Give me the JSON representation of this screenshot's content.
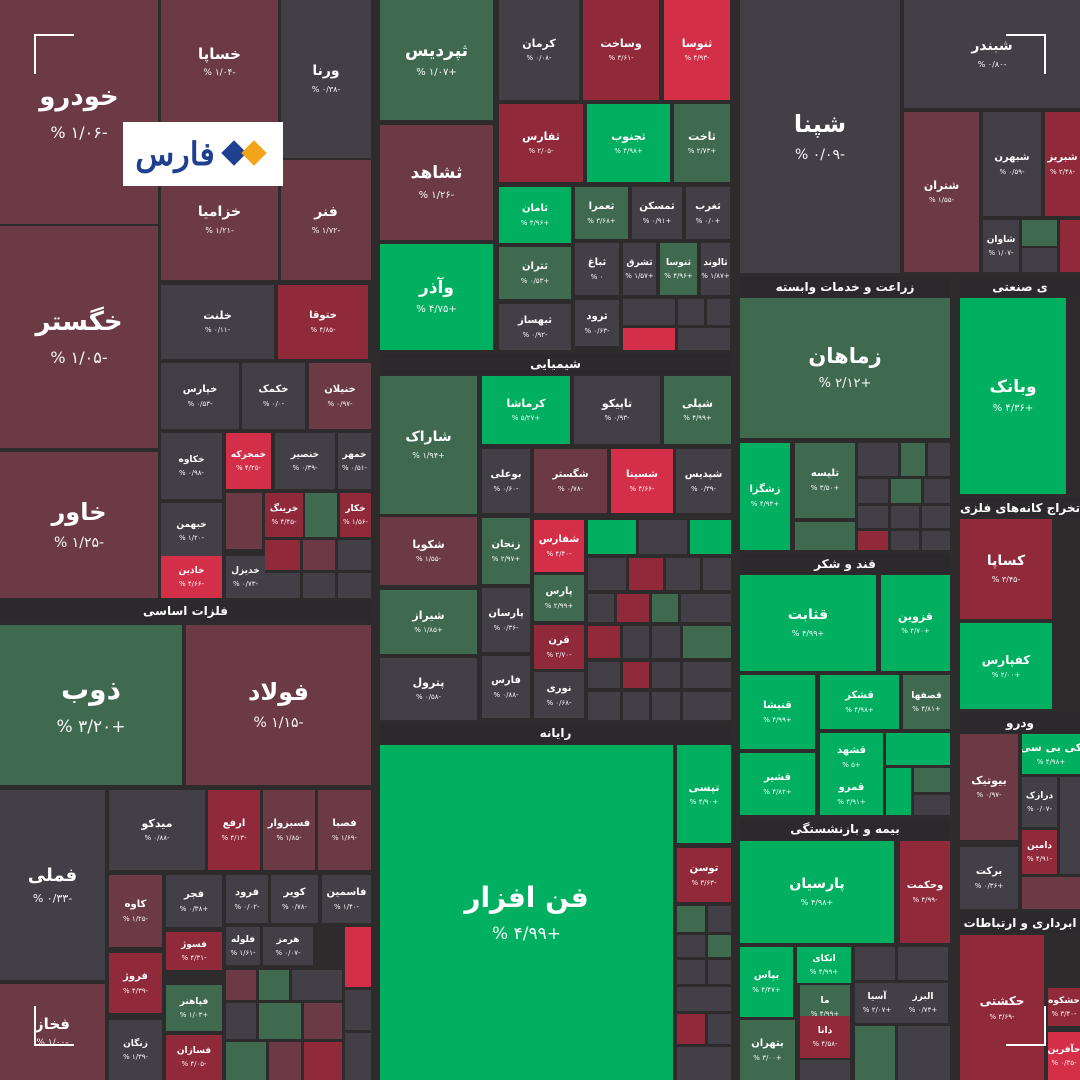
{
  "colors": {
    "strong_up": "#00b060",
    "up": "#3f6a50",
    "neutral": "#433f46",
    "down": "#6b3a45",
    "strong_down": "#d42f49",
    "mild_down": "#90293a",
    "background": "#2e2b2d"
  },
  "logo": {
    "text": "فارس"
  },
  "chart_data": {
    "type": "treemap",
    "title": "",
    "sections": [
      {
        "name": "فلزات اساسی"
      },
      {
        "name": "شیمیایی"
      },
      {
        "name": "رایانه"
      },
      {
        "name": "زراعت و خدمات وابسته"
      },
      {
        "name": "قند و شکر"
      },
      {
        "name": "بیمه و بازنشستگی"
      },
      {
        "name": "ی صنعتی"
      },
      {
        "name": "تخراج کانه‌های فلزی"
      },
      {
        "name": "ودرو"
      },
      {
        "name": "ابرداری و ارتباطات"
      }
    ],
    "tiles": [
      {
        "name": "خودرو",
        "change": "-۱/۰۶ %"
      },
      {
        "name": "خساپا",
        "change": "-۱/۰۴ %"
      },
      {
        "name": "ورنا",
        "change": "-۰/۳۸ %"
      },
      {
        "name": "خزامیا",
        "change": "-۱/۲۱ %"
      },
      {
        "name": "فنر",
        "change": "-۱/۷۲ %"
      },
      {
        "name": "خگستر",
        "change": "-۱/۰۵ %"
      },
      {
        "name": "خلنت",
        "change": "-۰/۱۱ %"
      },
      {
        "name": "ختوقا",
        "change": "-۴/۸۵ %"
      },
      {
        "name": "خپارس",
        "change": "-۰/۵۳ %"
      },
      {
        "name": "خکمک",
        "change": "-۰/۰ %"
      },
      {
        "name": "خنیلان",
        "change": "-۰/۹۷ %"
      },
      {
        "name": "خکاوه",
        "change": "-۰/۹۸ %"
      },
      {
        "name": "خمحرکه",
        "change": "-۴/۲۵ %"
      },
      {
        "name": "خنصیر",
        "change": "-۰/۳۹ %"
      },
      {
        "name": "خمهر",
        "change": "-۰/۵۱ %"
      },
      {
        "name": "خاور",
        "change": "-۱/۲۵ %"
      },
      {
        "name": "خبهمن",
        "change": "-۱/۲۰ %"
      },
      {
        "name": "خرینگ",
        "change": "-۴/۴۵ %"
      },
      {
        "name": "خکار",
        "change": "-۱/۵۶ %"
      },
      {
        "name": "خاذین",
        "change": "-۴/۶۶ %"
      },
      {
        "name": "خدیزل",
        "change": "-۰/۷۳ %"
      },
      {
        "name": "ذوب",
        "change": "+۳/۲۰ %"
      },
      {
        "name": "فولاد",
        "change": "-۱/۱۵ %"
      },
      {
        "name": "فملی",
        "change": "-۰/۳۳ %"
      },
      {
        "name": "میدکو",
        "change": "-۰/۸۸ %"
      },
      {
        "name": "ارفع",
        "change": "-۴/۱۳ %"
      },
      {
        "name": "فسبزوار",
        "change": "-۱/۸۵ %"
      },
      {
        "name": "فصبا",
        "change": "-۱/۶۹ %"
      },
      {
        "name": "کاوه",
        "change": "-۱/۲۵ %"
      },
      {
        "name": "فجر",
        "change": "+۰/۳۸ %"
      },
      {
        "name": "فرود",
        "change": "-۰/۰۲ %"
      },
      {
        "name": "کویر",
        "change": "-۰/۷۸ %"
      },
      {
        "name": "فاسمین",
        "change": "-۱/۴۰ %"
      },
      {
        "name": "فسوژ",
        "change": "-۴/۳۱ %"
      },
      {
        "name": "فلوله",
        "change": "-۱/۶۱ %"
      },
      {
        "name": "هرمز",
        "change": "-۰/۰۷ %"
      },
      {
        "name": "فروژ",
        "change": "-۴/۳۹ %"
      },
      {
        "name": "فپاهنر",
        "change": "+۱/۰۳ %"
      },
      {
        "name": "فخاز",
        "change": "-۱/۰۰ %"
      },
      {
        "name": "زنگان",
        "change": "-۱/۳۹ %"
      },
      {
        "name": "فسازان",
        "change": "-۴/۰۵ %"
      },
      {
        "name": "ثپردیس",
        "change": "+۱/۰۷ %"
      },
      {
        "name": "کرمان",
        "change": "-۰/۰۸ %"
      },
      {
        "name": "وساخت",
        "change": "-۳/۶۱ %"
      },
      {
        "name": "ثنوسا",
        "change": "-۴/۹۳ %"
      },
      {
        "name": "ثشاهد",
        "change": "-۱/۲۶ %"
      },
      {
        "name": "ثفارس",
        "change": "-۲/۰۵ %"
      },
      {
        "name": "ثجنوب",
        "change": "+۴/۹۸ %"
      },
      {
        "name": "ثاخت",
        "change": "+۲/۷۳ %"
      },
      {
        "name": "ثامان",
        "change": "+۴/۹۶ %"
      },
      {
        "name": "ثعمرا",
        "change": "+۳/۶۸ %"
      },
      {
        "name": "ثمسکن",
        "change": "+۰/۹۱ %"
      },
      {
        "name": "ثغرب",
        "change": "+۰/۰ %"
      },
      {
        "name": "وآذر",
        "change": "+۴/۷۵ %"
      },
      {
        "name": "ثتران",
        "change": "+۰/۵۳ %"
      },
      {
        "name": "ثباغ",
        "change": "۰ %"
      },
      {
        "name": "ثشرق",
        "change": "+۱/۵۷ %"
      },
      {
        "name": "ثنوسا",
        "change": "+۴/۹۶ %"
      },
      {
        "name": "ثالوند",
        "change": "+۱/۸۷ %"
      },
      {
        "name": "ثبهساز",
        "change": "-۰/۹۲ %"
      },
      {
        "name": "ثرود",
        "change": "-۰/۶۳ %"
      },
      {
        "name": "کرماشا",
        "change": "+۵/۲۷ %"
      },
      {
        "name": "تاپیکو",
        "change": "-۰/۹۳ %"
      },
      {
        "name": "شپلی",
        "change": "+۴/۹۹ %"
      },
      {
        "name": "شاراک",
        "change": "+۱/۹۴ %"
      },
      {
        "name": "بوعلی",
        "change": "-۰/۶۰ %"
      },
      {
        "name": "شگستر",
        "change": "-۰/۷۸ %"
      },
      {
        "name": "شسینا",
        "change": "-۴/۶۶ %"
      },
      {
        "name": "شپدیس",
        "change": "-۰/۳۹ %"
      },
      {
        "name": "شکویا",
        "change": "-۱/۵۵ %"
      },
      {
        "name": "زنجان",
        "change": "+۲/۹۷ %"
      },
      {
        "name": "شفارس",
        "change": "-۴/۴۰ %"
      },
      {
        "name": "پارس",
        "change": "+۲/۹۹ %"
      },
      {
        "name": "شیراز",
        "change": "+۱/۸۵ %"
      },
      {
        "name": "پارسان",
        "change": "-۰/۳۶ %"
      },
      {
        "name": "قرن",
        "change": "-۲/۷۰ %"
      },
      {
        "name": "پترول",
        "change": "-۰/۵۸ %"
      },
      {
        "name": "فارس",
        "change": "-۰/۸۸ %"
      },
      {
        "name": "نوری",
        "change": "-۰/۶۸ %"
      },
      {
        "name": "فن افزار",
        "change": "+۴/۹۹ %"
      },
      {
        "name": "تپسی",
        "change": "+۴/۹۰ %"
      },
      {
        "name": "توسن",
        "change": "-۳/۶۳ %"
      },
      {
        "name": "شپنا",
        "change": "-۰/۰۹ %"
      },
      {
        "name": "شبندر",
        "change": "-۰/۸۰ %"
      },
      {
        "name": "شتران",
        "change": "-۱/۵۵ %"
      },
      {
        "name": "شبهرن",
        "change": "-۰/۵۹ %"
      },
      {
        "name": "شبریز",
        "change": "-۲/۴۸ %"
      },
      {
        "name": "شاوان",
        "change": "-۱/۰۷ %"
      },
      {
        "name": "زماهان",
        "change": "+۲/۱۲ %"
      },
      {
        "name": "وبانک",
        "change": "+۴/۳۶ %"
      },
      {
        "name": "زشگزا",
        "change": "+۴/۹۴ %"
      },
      {
        "name": "تلیسه",
        "change": "+۳/۵۰ %"
      },
      {
        "name": "قثابت",
        "change": "+۴/۹۹ %"
      },
      {
        "name": "قزوین",
        "change": "+۴/۷۰ %"
      },
      {
        "name": "قنیشا",
        "change": "+۴/۹۹ %"
      },
      {
        "name": "قشکر",
        "change": "+۴/۹۸ %"
      },
      {
        "name": "قصفها",
        "change": "+۴/۸۱ %"
      },
      {
        "name": "قشهد",
        "change": "+۵ %"
      },
      {
        "name": "قشیر",
        "change": "+۴/۸۲ %"
      },
      {
        "name": "قمرو",
        "change": "+۴/۹۱ %"
      },
      {
        "name": "کساپا",
        "change": "-۳/۴۵ %"
      },
      {
        "name": "کفپارس",
        "change": "+۲/۰۰ %"
      },
      {
        "name": "بیوتیک",
        "change": "-۰/۹۷ %"
      },
      {
        "name": "کی بی سی",
        "change": "+۴/۹۸ %"
      },
      {
        "name": "درازک",
        "change": "-۰/۰۷ %"
      },
      {
        "name": "دامین",
        "change": "-۴/۹۱ %"
      },
      {
        "name": "برکت",
        "change": "+۰/۳۶ %"
      },
      {
        "name": "پارسیان",
        "change": "+۴/۹۸ %"
      },
      {
        "name": "وحکمت",
        "change": "-۴/۹۹ %"
      },
      {
        "name": "اتکای",
        "change": "+۴/۹۹ %"
      },
      {
        "name": "بپاس",
        "change": "+۴/۴۷ %"
      },
      {
        "name": "آسیا",
        "change": "+۲/۰۷ %"
      },
      {
        "name": "البرز",
        "change": "+۰/۷۴ %"
      },
      {
        "name": "ما",
        "change": "+۴/۹۹ %"
      },
      {
        "name": "دانا",
        "change": "-۴/۵۸ %"
      },
      {
        "name": "بتهران",
        "change": "+۳/۰۰ %"
      },
      {
        "name": "حکشتی",
        "change": "-۳/۶۹ %"
      },
      {
        "name": "حشکوه",
        "change": "-۳/۴۰ %"
      },
      {
        "name": "حآفرین",
        "change": "-۰/۳۵ %"
      }
    ]
  }
}
